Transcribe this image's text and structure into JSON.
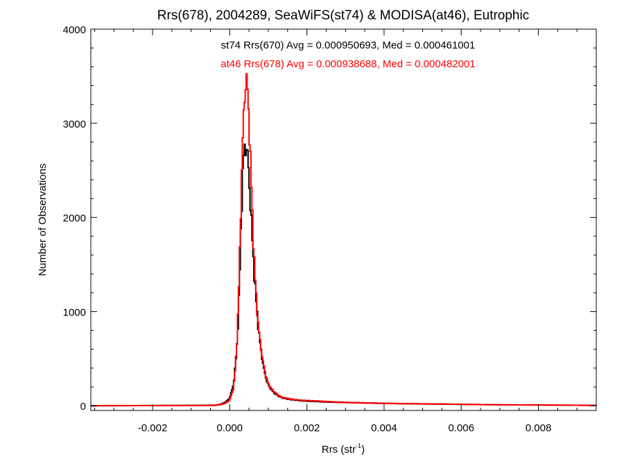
{
  "chart_data": {
    "type": "line",
    "title": "Rrs(678), 2004289, SeaWiFS(st74) & MODISA(at46), Eutrophic",
    "xlabel_main": "Rrs (str",
    "xlabel_sup": "-1",
    "xlabel_tail": ")",
    "ylabel": "Number of Observations",
    "xlim": [
      -0.0036,
      0.0095
    ],
    "ylim": [
      -50,
      4000
    ],
    "x_ticks": [
      -0.002,
      0.0,
      0.002,
      0.004,
      0.006,
      0.008
    ],
    "x_tick_labels": [
      "-0.002",
      "0.000",
      "0.002",
      "0.004",
      "0.006",
      "0.008"
    ],
    "y_ticks": [
      0,
      1000,
      2000,
      3000,
      4000
    ],
    "y_tick_labels": [
      "0",
      "1000",
      "2000",
      "3000",
      "4000"
    ],
    "grid": false,
    "legend_position": "top-center",
    "annotations": [
      "st74 Rrs(670) Avg = 0.000950693, Med = 0.000461001",
      "at46 Rrs(678) Avg = 0.000938688, Med = 0.000482001"
    ],
    "series": [
      {
        "color": "#000000",
        "x": [
          -0.0036,
          -0.0004,
          -0.0003,
          -0.0002,
          -0.0001,
          0.0,
          0.0001,
          0.00015,
          0.0002,
          0.00025,
          0.0003,
          0.00035,
          0.0004,
          0.00045,
          0.0005,
          0.00055,
          0.0006,
          0.00065,
          0.0007,
          0.00075,
          0.0008,
          0.00085,
          0.0009,
          0.00095,
          0.001,
          0.0011,
          0.0012,
          0.0013,
          0.0014,
          0.0016,
          0.0018,
          0.002,
          0.0025,
          0.003,
          0.004,
          0.005,
          0.006,
          0.007,
          0.008,
          0.009,
          0.0095
        ],
        "y": [
          0,
          5,
          10,
          20,
          40,
          80,
          230,
          430,
          730,
          1250,
          2050,
          2580,
          2790,
          2700,
          2450,
          2040,
          1660,
          1310,
          1040,
          800,
          620,
          480,
          360,
          280,
          220,
          160,
          120,
          95,
          80,
          65,
          55,
          50,
          40,
          35,
          25,
          20,
          15,
          10,
          8,
          5,
          3
        ]
      },
      {
        "color": "#ff0000",
        "x": [
          -0.0036,
          -0.0004,
          -0.0003,
          -0.0002,
          -0.0001,
          0.0,
          0.0001,
          0.00015,
          0.0002,
          0.00025,
          0.0003,
          0.00035,
          0.0004,
          0.00045,
          0.0005,
          0.00055,
          0.0006,
          0.00065,
          0.0007,
          0.00075,
          0.0008,
          0.00085,
          0.0009,
          0.00095,
          0.001,
          0.0011,
          0.0012,
          0.0013,
          0.0014,
          0.0016,
          0.0018,
          0.002,
          0.0025,
          0.003,
          0.004,
          0.005,
          0.006,
          0.007,
          0.008,
          0.009,
          0.0095
        ],
        "y": [
          0,
          3,
          8,
          15,
          30,
          60,
          190,
          430,
          780,
          1420,
          2320,
          2960,
          3430,
          3420,
          3060,
          2460,
          1890,
          1420,
          1070,
          820,
          640,
          500,
          390,
          300,
          230,
          170,
          130,
          100,
          85,
          70,
          60,
          55,
          45,
          35,
          25,
          20,
          15,
          10,
          8,
          5,
          3
        ]
      }
    ]
  }
}
